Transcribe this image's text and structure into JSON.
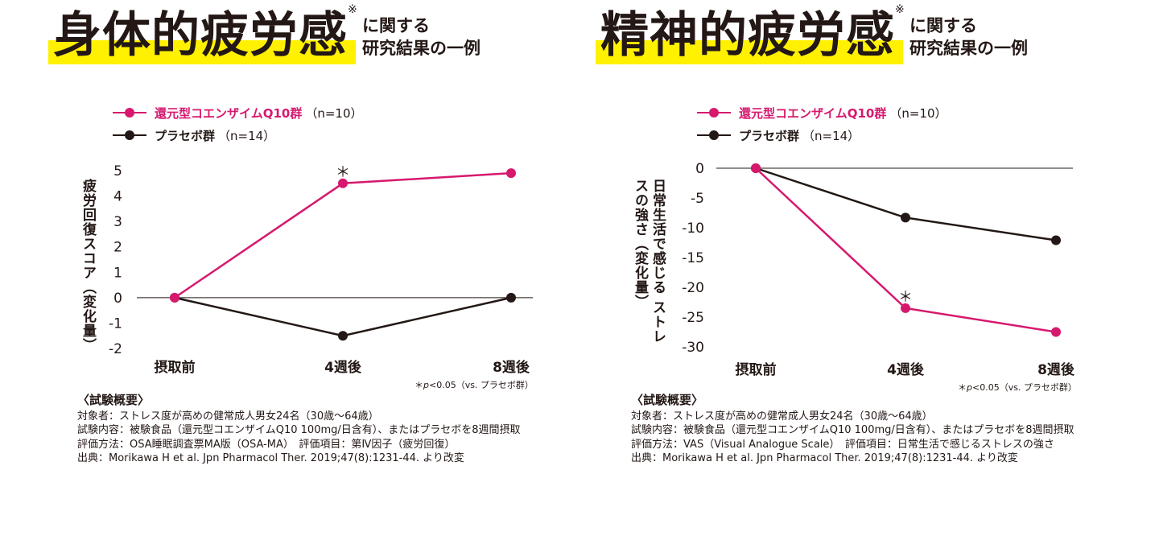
{
  "colors": {
    "treatment": "#d6196e",
    "placebo": "#231815",
    "highlight": "#fff100"
  },
  "left": {
    "title": "身体的疲労感",
    "title_mark": "※",
    "subtitle_line1": "に関する",
    "subtitle_line2": "研究結果の一例",
    "legend": [
      {
        "label": "還元型コエンザイムQ10群",
        "n": "（n=10）"
      },
      {
        "label": "プラセボ群",
        "n": "（n=14）"
      }
    ],
    "footnote_star": "＊",
    "footnote_p": "p",
    "footnote_rest": "<0.05（vs. プラセボ群）",
    "summary_title": "〈試験概要〉",
    "summary_lines": [
      "対象者：ストレス度が高めの健常成人男女24名（30歳～64歳）",
      "試験内容：被験食品（還元型コエンザイムQ10 100mg/日含有）、またはプラセボを8週間摂取",
      "評価方法：OSA睡眠調査票MA版（OSA-MA）　評価項目：第Ⅳ因子（疲労回復）",
      "出典：Morikawa H et al. Jpn Pharmacol Ther. 2019;47(8):1231-44. より改変"
    ]
  },
  "right": {
    "title": "精神的疲労感",
    "title_mark": "※",
    "subtitle_line1": "に関する",
    "subtitle_line2": "研究結果の一例",
    "legend": [
      {
        "label": "還元型コエンザイムQ10群",
        "n": "（n=10）"
      },
      {
        "label": "プラセボ群",
        "n": "（n=14）"
      }
    ],
    "footnote_star": "＊",
    "footnote_p": "p",
    "footnote_rest": "<0.05（vs. プラセボ群）",
    "summary_title": "〈試験概要〉",
    "summary_lines": [
      "対象者：ストレス度が高めの健常成人男女24名（30歳～64歳）",
      "試験内容：被験食品（還元型コエンザイムQ10 100mg/日含有）、またはプラセボを8週間摂取",
      "評価方法：VAS（Visual Analogue Scale）　評価項目：日常生活で感じるストレスの強さ",
      "出典：Morikawa H et al. Jpn Pharmacol Ther. 2019;47(8):1231-44. より改変"
    ]
  },
  "chart_data": [
    {
      "type": "line",
      "categories": [
        "摂取前",
        "4週後",
        "8週後"
      ],
      "series": [
        {
          "name": "還元型コエンザイムQ10群",
          "values": [
            0,
            4.5,
            4.9
          ],
          "significance": [
            "",
            "＊",
            ""
          ]
        },
        {
          "name": "プラセボ群",
          "values": [
            0,
            -1.5,
            0
          ]
        }
      ],
      "ylabel": "疲労回復スコア（変化量）",
      "yticks": [
        "5",
        "4",
        "3",
        "2",
        "1",
        "0",
        "-1",
        "-2"
      ],
      "ylim": [
        -2,
        5
      ],
      "grid": false
    },
    {
      "type": "line",
      "categories": [
        "摂取前",
        "4週後",
        "8週後"
      ],
      "series": [
        {
          "name": "還元型コエンザイムQ10群",
          "values": [
            0,
            -23.5,
            -27.5
          ],
          "significance": [
            "",
            "＊",
            ""
          ]
        },
        {
          "name": "プラセボ群",
          "values": [
            0,
            -8.3,
            -12.1
          ]
        }
      ],
      "ylabel_line1": "日常生活で感じる",
      "ylabel_line2": "ストレスの強さ（変化量）",
      "yticks": [
        "0",
        "-5",
        "-10",
        "-15",
        "-20",
        "-25",
        "-30"
      ],
      "ylim": [
        -30,
        0
      ],
      "grid": false
    }
  ]
}
